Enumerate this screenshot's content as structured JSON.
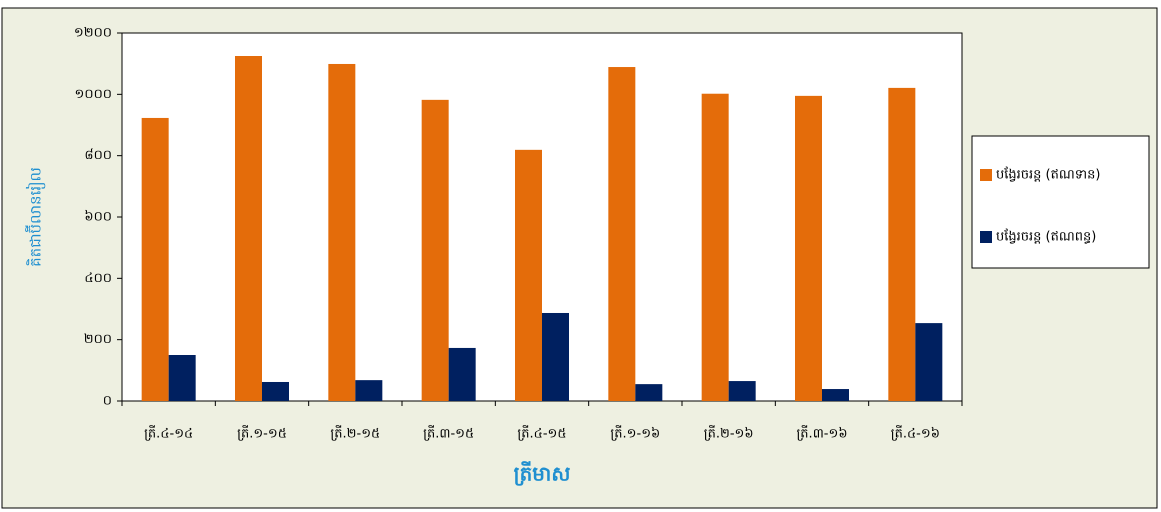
{
  "chart_data": {
    "type": "bar",
    "ylabel": "គិតជាប៊ីលានរៀល",
    "xlabel": "ត្រីមាស",
    "categories": [
      "ត្រី.៤-១៤",
      "ត្រី.១-១៥",
      "ត្រី.២-១៥",
      "ត្រី.៣-១៥",
      "ត្រី.៤-១៥",
      "ត្រី.១-១៦",
      "ត្រី.២-១៦",
      "ត្រី.៣-១៦",
      "ត្រី.៤-១៦"
    ],
    "series": [
      {
        "name": "បង្វែរចរន្ត (ឥណទាន)",
        "color": "#e46c0a",
        "values": [
          923,
          1125,
          1099,
          982,
          819,
          1089,
          1002,
          995,
          1021
        ]
      },
      {
        "name": "បង្វែរចរន្ត (ឥណពន្ធ)",
        "color": "#002060",
        "values": [
          150,
          62,
          68,
          173,
          287,
          55,
          65,
          39,
          254
        ]
      }
    ],
    "ylim": [
      0,
      1200
    ],
    "yticks": [
      {
        "value": 0,
        "label": "០"
      },
      {
        "value": 200,
        "label": "២០០"
      },
      {
        "value": 400,
        "label": "៤០០"
      },
      {
        "value": 600,
        "label": "៦០០"
      },
      {
        "value": 800,
        "label": "៨០០"
      },
      {
        "value": 1000,
        "label": "១០០០"
      },
      {
        "value": 1200,
        "label": "១២០០"
      }
    ],
    "grid": false,
    "legend": "right"
  }
}
